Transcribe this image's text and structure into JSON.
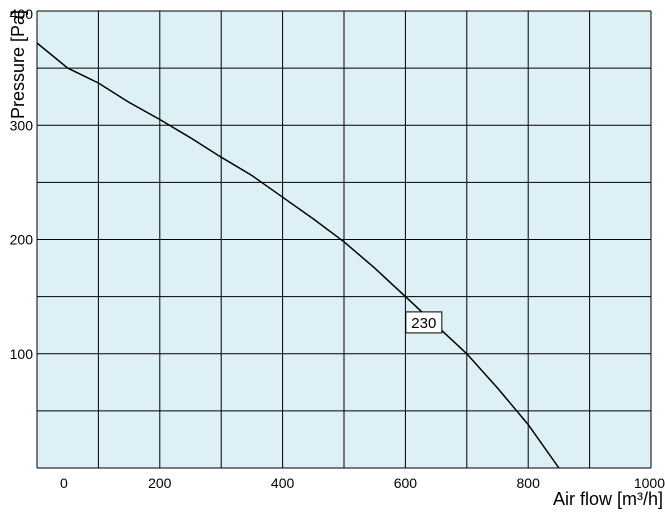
{
  "chart_data": {
    "type": "line",
    "title": "",
    "xlabel": "Air flow [m³/h]",
    "ylabel": "Pressure [Pa]",
    "xlim": [
      0,
      1000
    ],
    "ylim": [
      0,
      400
    ],
    "x_ticks": [
      "0",
      "200",
      "400",
      "600",
      "800",
      "1000"
    ],
    "y_ticks": [
      "100",
      "200",
      "300",
      "400"
    ],
    "grid": true,
    "background_color": "#ddf0f6",
    "line_color": "#000000",
    "series": [
      {
        "name": "230",
        "x": [
          0,
          50,
          100,
          150,
          200,
          250,
          300,
          350,
          400,
          450,
          500,
          550,
          600,
          650,
          700,
          750,
          800,
          850
        ],
        "y": [
          372,
          350,
          337,
          320,
          305,
          289,
          272,
          256,
          237,
          218,
          198,
          175,
          150,
          125,
          100,
          70,
          38,
          0
        ]
      }
    ],
    "annotations": [
      {
        "text": "230",
        "x": 630,
        "y": 127
      }
    ]
  }
}
